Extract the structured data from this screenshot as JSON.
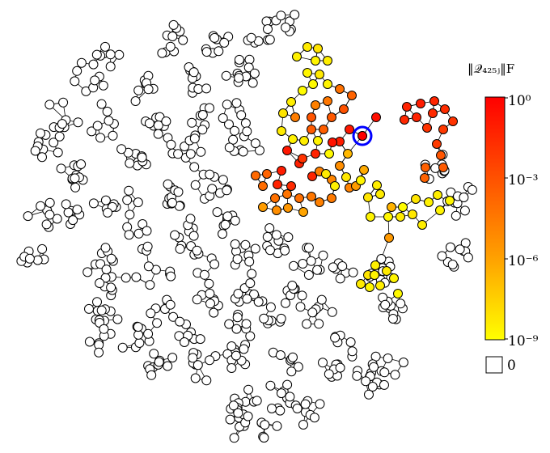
{
  "colorbar": {
    "title": "‖𝒬₄₂₅ⱼ‖F",
    "ticks": [
      {
        "label": "10⁰",
        "value": 0
      },
      {
        "label": "10⁻³",
        "value": -3
      },
      {
        "label": "10⁻⁶",
        "value": -6
      },
      {
        "label": "10⁻⁹",
        "value": -9
      }
    ],
    "zero_label": "0",
    "scale": "log",
    "range": [
      -9,
      0
    ],
    "color_low": "#ffff00",
    "color_mid": "#ff9900",
    "color_high": "#ff0000",
    "zero_color": "#ffffff"
  },
  "source_node": {
    "index": 425,
    "highlight_color": "#0000ff"
  },
  "graph": {
    "node_count_shown": 800,
    "colored_node_log_values_note": ""
  }
}
